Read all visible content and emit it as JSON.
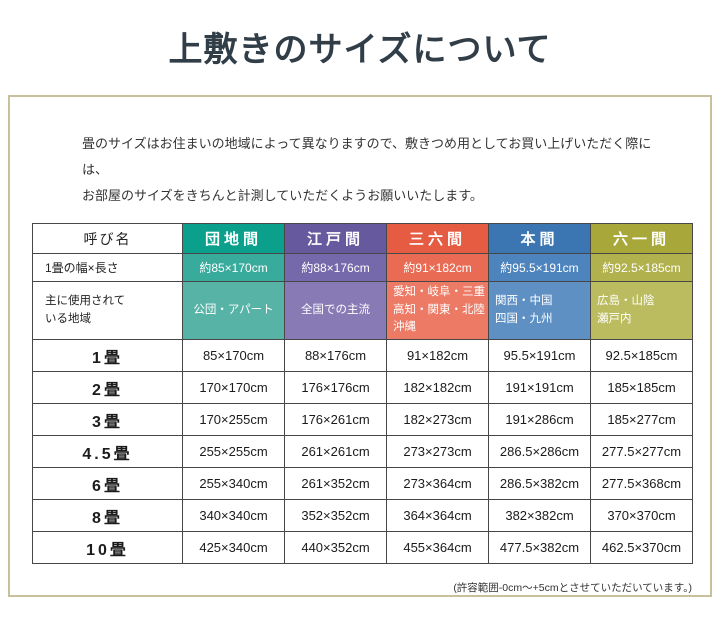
{
  "title": "上敷きのサイズについて",
  "intro": {
    "line1": "畳のサイズはお住まいの地域によって異なりますので、敷きつめ用としてお買い上げいただく際には、",
    "line2": "お部屋のサイズをきちんと計測していただくようお願いいたします。"
  },
  "colors": {
    "danchi": {
      "head": "#0ba08c",
      "width": "#38ab9c",
      "region": "#56b3a6"
    },
    "edo": {
      "head": "#67599e",
      "width": "#7669ab",
      "region": "#877ab5"
    },
    "sanroku": {
      "head": "#e65c43",
      "width": "#e96b54",
      "region": "#ec7a64"
    },
    "honma": {
      "head": "#3b76b3",
      "width": "#4d84bd",
      "region": "#5e90c4"
    },
    "rokuichi": {
      "head": "#a8a83a",
      "width": "#b1b14d",
      "region": "#bbbb60"
    }
  },
  "table": {
    "headers": {
      "corner": "呼び名",
      "c1": "団地間",
      "c2": "江戸間",
      "c3": "三六間",
      "c4": "本間",
      "c5": "六一間"
    },
    "width_row": {
      "label": "1畳の幅×長さ",
      "c1": "約85×170cm",
      "c2": "約88×176cm",
      "c3": "約91×182cm",
      "c4": "約95.5×191cm",
      "c5": "約92.5×185cm"
    },
    "region_row": {
      "label": [
        "主に使用されて",
        "いる地域"
      ],
      "c1": "公団・アパート",
      "c2": "全国での主流",
      "c3": [
        "愛知・岐阜・三重",
        "高知・関東・北陸",
        "沖縄"
      ],
      "c4": [
        "関西・中国",
        "四国・九州"
      ],
      "c5": [
        "広島・山陰",
        "瀬戸内"
      ]
    },
    "rows": [
      {
        "label": "1畳",
        "c1": "85×170cm",
        "c2": "88×176cm",
        "c3": "91×182cm",
        "c4": "95.5×191cm",
        "c5": "92.5×185cm"
      },
      {
        "label": "2畳",
        "c1": "170×170cm",
        "c2": "176×176cm",
        "c3": "182×182cm",
        "c4": "191×191cm",
        "c5": "185×185cm"
      },
      {
        "label": "3畳",
        "c1": "170×255cm",
        "c2": "176×261cm",
        "c3": "182×273cm",
        "c4": "191×286cm",
        "c5": "185×277cm"
      },
      {
        "label": "4.5畳",
        "c1": "255×255cm",
        "c2": "261×261cm",
        "c3": "273×273cm",
        "c4": "286.5×286cm",
        "c5": "277.5×277cm"
      },
      {
        "label": "6畳",
        "c1": "255×340cm",
        "c2": "261×352cm",
        "c3": "273×364cm",
        "c4": "286.5×382cm",
        "c5": "277.5×368cm"
      },
      {
        "label": "8畳",
        "c1": "340×340cm",
        "c2": "352×352cm",
        "c3": "364×364cm",
        "c4": "382×382cm",
        "c5": "370×370cm"
      },
      {
        "label": "10畳",
        "c1": "425×340cm",
        "c2": "440×352cm",
        "c3": "455×364cm",
        "c4": "477.5×382cm",
        "c5": "462.5×370cm"
      }
    ]
  },
  "footer": {
    "note": "(許容範囲-0cm～+5cmとさせていただいています。)"
  }
}
